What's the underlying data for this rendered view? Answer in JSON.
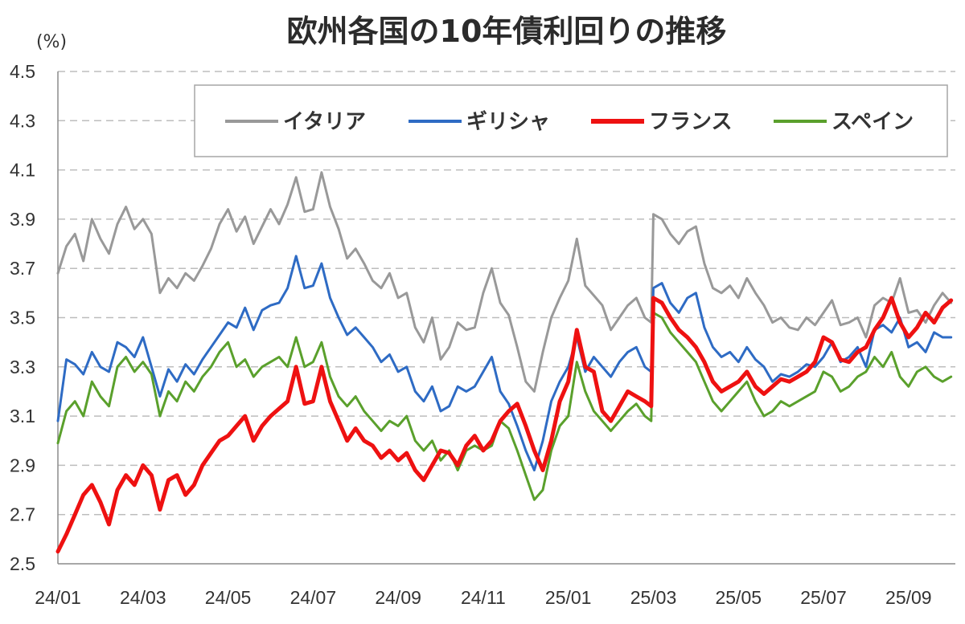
{
  "chart_data": {
    "type": "line",
    "title": "欧州各国の10年債利回りの推移",
    "ylabel": "(%)",
    "xlabel": "",
    "ylim": [
      2.5,
      4.5
    ],
    "yticks": [
      "4.5",
      "4.3",
      "4.1",
      "3.9",
      "3.7",
      "3.5",
      "3.3",
      "3.1",
      "2.9",
      "2.7",
      "2.5"
    ],
    "ytick_values": [
      4.5,
      4.3,
      4.1,
      3.9,
      3.7,
      3.5,
      3.3,
      3.1,
      2.9,
      2.7,
      2.5
    ],
    "x_tick_labels": [
      "24/01",
      "24/03",
      "24/05",
      "24/07",
      "24/09",
      "24/11",
      "25/01",
      "25/03",
      "25/05",
      "25/07",
      "25/09"
    ],
    "x_tick_months": [
      0,
      2,
      4,
      6,
      8,
      10,
      12,
      14,
      16,
      18,
      20
    ],
    "x_range_months": [
      0,
      21.1
    ],
    "grid": true,
    "legend_position": "top",
    "series": [
      {
        "name": "イタリア",
        "color": "#999999",
        "x": [
          0,
          0.2,
          0.4,
          0.6,
          0.8,
          1.0,
          1.2,
          1.4,
          1.6,
          1.8,
          2.0,
          2.2,
          2.4,
          2.6,
          2.8,
          3.0,
          3.2,
          3.4,
          3.6,
          3.8,
          4.0,
          4.2,
          4.4,
          4.6,
          4.8,
          5.0,
          5.2,
          5.4,
          5.6,
          5.8,
          6.0,
          6.2,
          6.4,
          6.6,
          6.8,
          7.0,
          7.2,
          7.4,
          7.6,
          7.8,
          8.0,
          8.2,
          8.4,
          8.6,
          8.8,
          9.0,
          9.2,
          9.4,
          9.6,
          9.8,
          10.0,
          10.2,
          10.4,
          10.6,
          10.8,
          11.0,
          11.2,
          11.4,
          11.6,
          11.8,
          12.0,
          12.2,
          12.4,
          12.6,
          12.8,
          13.0,
          13.2,
          13.4,
          13.6,
          13.8,
          13.95,
          14.0,
          14.2,
          14.4,
          14.6,
          14.8,
          15.0,
          15.2,
          15.4,
          15.6,
          15.8,
          16.0,
          16.2,
          16.4,
          16.6,
          16.8,
          17.0,
          17.2,
          17.4,
          17.6,
          17.8,
          18.0,
          18.2,
          18.4,
          18.6,
          18.8,
          19.0,
          19.2,
          19.4,
          19.6,
          19.8,
          20.0,
          20.2,
          20.4,
          20.6,
          20.8,
          21.0
        ],
        "values": [
          3.68,
          3.79,
          3.84,
          3.73,
          3.9,
          3.82,
          3.76,
          3.88,
          3.95,
          3.86,
          3.9,
          3.84,
          3.6,
          3.66,
          3.62,
          3.68,
          3.65,
          3.71,
          3.78,
          3.88,
          3.94,
          3.85,
          3.91,
          3.8,
          3.87,
          3.94,
          3.88,
          3.96,
          4.07,
          3.93,
          3.94,
          4.09,
          3.95,
          3.86,
          3.74,
          3.78,
          3.72,
          3.65,
          3.62,
          3.68,
          3.58,
          3.6,
          3.46,
          3.4,
          3.5,
          3.33,
          3.38,
          3.48,
          3.45,
          3.46,
          3.6,
          3.7,
          3.56,
          3.51,
          3.38,
          3.24,
          3.2,
          3.36,
          3.5,
          3.58,
          3.65,
          3.82,
          3.63,
          3.59,
          3.55,
          3.45,
          3.5,
          3.55,
          3.58,
          3.5,
          3.48,
          3.92,
          3.9,
          3.84,
          3.8,
          3.85,
          3.87,
          3.72,
          3.62,
          3.6,
          3.63,
          3.58,
          3.66,
          3.6,
          3.55,
          3.48,
          3.5,
          3.46,
          3.45,
          3.5,
          3.47,
          3.52,
          3.57,
          3.47,
          3.48,
          3.5,
          3.42,
          3.55,
          3.58,
          3.56,
          3.66,
          3.52,
          3.53,
          3.48,
          3.55,
          3.6,
          3.56
        ]
      },
      {
        "name": "ギリシャ",
        "color": "#2e6bc4",
        "x": [
          0,
          0.2,
          0.4,
          0.6,
          0.8,
          1.0,
          1.2,
          1.4,
          1.6,
          1.8,
          2.0,
          2.2,
          2.4,
          2.6,
          2.8,
          3.0,
          3.2,
          3.4,
          3.6,
          3.8,
          4.0,
          4.2,
          4.4,
          4.6,
          4.8,
          5.0,
          5.2,
          5.4,
          5.6,
          5.8,
          6.0,
          6.2,
          6.4,
          6.6,
          6.8,
          7.0,
          7.2,
          7.4,
          7.6,
          7.8,
          8.0,
          8.2,
          8.4,
          8.6,
          8.8,
          9.0,
          9.2,
          9.4,
          9.6,
          9.8,
          10.0,
          10.2,
          10.4,
          10.6,
          10.8,
          11.0,
          11.2,
          11.4,
          11.6,
          11.8,
          12.0,
          12.2,
          12.4,
          12.6,
          12.8,
          13.0,
          13.2,
          13.4,
          13.6,
          13.8,
          13.95,
          14.0,
          14.2,
          14.4,
          14.6,
          14.8,
          15.0,
          15.2,
          15.4,
          15.6,
          15.8,
          16.0,
          16.2,
          16.4,
          16.6,
          16.8,
          17.0,
          17.2,
          17.4,
          17.6,
          17.8,
          18.0,
          18.2,
          18.4,
          18.6,
          18.8,
          19.0,
          19.2,
          19.4,
          19.6,
          19.8,
          20.0,
          20.2,
          20.4,
          20.6,
          20.8,
          21.0
        ],
        "values": [
          3.08,
          3.33,
          3.31,
          3.27,
          3.36,
          3.3,
          3.28,
          3.4,
          3.38,
          3.34,
          3.42,
          3.3,
          3.18,
          3.29,
          3.24,
          3.31,
          3.27,
          3.33,
          3.38,
          3.43,
          3.48,
          3.46,
          3.54,
          3.45,
          3.53,
          3.55,
          3.56,
          3.62,
          3.75,
          3.62,
          3.63,
          3.72,
          3.58,
          3.5,
          3.43,
          3.46,
          3.42,
          3.38,
          3.32,
          3.35,
          3.28,
          3.3,
          3.2,
          3.16,
          3.22,
          3.12,
          3.14,
          3.22,
          3.2,
          3.22,
          3.28,
          3.34,
          3.2,
          3.15,
          3.06,
          2.96,
          2.88,
          3.0,
          3.16,
          3.24,
          3.3,
          3.42,
          3.28,
          3.34,
          3.3,
          3.26,
          3.32,
          3.36,
          3.38,
          3.3,
          3.28,
          3.62,
          3.64,
          3.56,
          3.52,
          3.58,
          3.6,
          3.46,
          3.38,
          3.34,
          3.36,
          3.32,
          3.38,
          3.33,
          3.3,
          3.24,
          3.27,
          3.26,
          3.28,
          3.31,
          3.3,
          3.34,
          3.4,
          3.32,
          3.34,
          3.38,
          3.3,
          3.45,
          3.47,
          3.44,
          3.5,
          3.38,
          3.4,
          3.36,
          3.44,
          3.42,
          3.42
        ]
      },
      {
        "name": "フランス",
        "color": "#ee1111",
        "x": [
          0,
          0.2,
          0.4,
          0.6,
          0.8,
          1.0,
          1.2,
          1.4,
          1.6,
          1.8,
          2.0,
          2.2,
          2.4,
          2.6,
          2.8,
          3.0,
          3.2,
          3.4,
          3.6,
          3.8,
          4.0,
          4.2,
          4.4,
          4.6,
          4.8,
          5.0,
          5.2,
          5.4,
          5.6,
          5.8,
          6.0,
          6.2,
          6.4,
          6.6,
          6.8,
          7.0,
          7.2,
          7.4,
          7.6,
          7.8,
          8.0,
          8.2,
          8.4,
          8.6,
          8.8,
          9.0,
          9.2,
          9.4,
          9.6,
          9.8,
          10.0,
          10.2,
          10.4,
          10.6,
          10.8,
          11.0,
          11.2,
          11.4,
          11.6,
          11.8,
          12.0,
          12.2,
          12.4,
          12.6,
          12.8,
          13.0,
          13.2,
          13.4,
          13.6,
          13.8,
          13.95,
          14.0,
          14.2,
          14.4,
          14.6,
          14.8,
          15.0,
          15.2,
          15.4,
          15.6,
          15.8,
          16.0,
          16.2,
          16.4,
          16.6,
          16.8,
          17.0,
          17.2,
          17.4,
          17.6,
          17.8,
          18.0,
          18.2,
          18.4,
          18.6,
          18.8,
          19.0,
          19.2,
          19.4,
          19.6,
          19.8,
          20.0,
          20.2,
          20.4,
          20.6,
          20.8,
          21.0
        ],
        "values": [
          2.55,
          2.62,
          2.7,
          2.78,
          2.82,
          2.75,
          2.66,
          2.8,
          2.86,
          2.82,
          2.9,
          2.86,
          2.72,
          2.84,
          2.86,
          2.78,
          2.82,
          2.9,
          2.95,
          3.0,
          3.02,
          3.06,
          3.1,
          3.0,
          3.06,
          3.1,
          3.13,
          3.16,
          3.3,
          3.15,
          3.16,
          3.3,
          3.16,
          3.08,
          3.0,
          3.05,
          3.0,
          2.98,
          2.93,
          2.96,
          2.92,
          2.95,
          2.88,
          2.84,
          2.9,
          2.96,
          2.95,
          2.9,
          2.98,
          3.02,
          2.96,
          3.0,
          3.08,
          3.12,
          3.15,
          3.06,
          2.96,
          2.88,
          3.0,
          3.16,
          3.24,
          3.45,
          3.3,
          3.28,
          3.12,
          3.08,
          3.14,
          3.2,
          3.18,
          3.16,
          3.14,
          3.58,
          3.56,
          3.5,
          3.45,
          3.42,
          3.38,
          3.32,
          3.24,
          3.2,
          3.22,
          3.24,
          3.28,
          3.22,
          3.19,
          3.22,
          3.25,
          3.24,
          3.26,
          3.28,
          3.32,
          3.42,
          3.4,
          3.33,
          3.32,
          3.36,
          3.38,
          3.45,
          3.5,
          3.58,
          3.48,
          3.42,
          3.46,
          3.52,
          3.48,
          3.54,
          3.57
        ]
      },
      {
        "name": "スペイン",
        "color": "#5aa02c",
        "x": [
          0,
          0.2,
          0.4,
          0.6,
          0.8,
          1.0,
          1.2,
          1.4,
          1.6,
          1.8,
          2.0,
          2.2,
          2.4,
          2.6,
          2.8,
          3.0,
          3.2,
          3.4,
          3.6,
          3.8,
          4.0,
          4.2,
          4.4,
          4.6,
          4.8,
          5.0,
          5.2,
          5.4,
          5.6,
          5.8,
          6.0,
          6.2,
          6.4,
          6.6,
          6.8,
          7.0,
          7.2,
          7.4,
          7.6,
          7.8,
          8.0,
          8.2,
          8.4,
          8.6,
          8.8,
          9.0,
          9.2,
          9.4,
          9.6,
          9.8,
          10.0,
          10.2,
          10.4,
          10.6,
          10.8,
          11.0,
          11.2,
          11.4,
          11.6,
          11.8,
          12.0,
          12.2,
          12.4,
          12.6,
          12.8,
          13.0,
          13.2,
          13.4,
          13.6,
          13.8,
          13.95,
          14.0,
          14.2,
          14.4,
          14.6,
          14.8,
          15.0,
          15.2,
          15.4,
          15.6,
          15.8,
          16.0,
          16.2,
          16.4,
          16.6,
          16.8,
          17.0,
          17.2,
          17.4,
          17.6,
          17.8,
          18.0,
          18.2,
          18.4,
          18.6,
          18.8,
          19.0,
          19.2,
          19.4,
          19.6,
          19.8,
          20.0,
          20.2,
          20.4,
          20.6,
          20.8,
          21.0
        ],
        "values": [
          2.99,
          3.12,
          3.16,
          3.1,
          3.24,
          3.18,
          3.14,
          3.3,
          3.34,
          3.28,
          3.32,
          3.27,
          3.1,
          3.2,
          3.16,
          3.24,
          3.2,
          3.26,
          3.3,
          3.36,
          3.4,
          3.3,
          3.33,
          3.26,
          3.3,
          3.32,
          3.34,
          3.3,
          3.42,
          3.3,
          3.32,
          3.4,
          3.26,
          3.18,
          3.14,
          3.18,
          3.12,
          3.08,
          3.04,
          3.08,
          3.06,
          3.1,
          3.0,
          2.96,
          3.0,
          2.92,
          2.96,
          2.88,
          2.96,
          2.98,
          2.96,
          2.98,
          3.08,
          3.05,
          2.96,
          2.86,
          2.76,
          2.8,
          2.96,
          3.06,
          3.1,
          3.32,
          3.2,
          3.12,
          3.08,
          3.04,
          3.08,
          3.12,
          3.15,
          3.1,
          3.08,
          3.52,
          3.5,
          3.44,
          3.4,
          3.36,
          3.32,
          3.24,
          3.16,
          3.12,
          3.16,
          3.2,
          3.24,
          3.16,
          3.1,
          3.12,
          3.16,
          3.14,
          3.16,
          3.18,
          3.2,
          3.28,
          3.26,
          3.2,
          3.22,
          3.26,
          3.28,
          3.34,
          3.3,
          3.36,
          3.26,
          3.22,
          3.28,
          3.3,
          3.26,
          3.24,
          3.26
        ]
      }
    ]
  }
}
